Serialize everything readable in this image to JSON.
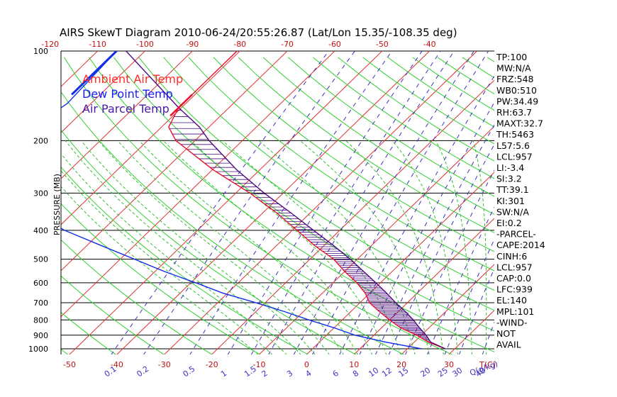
{
  "chart_data": {
    "type": "skewt",
    "title": "AIRS SkewT Diagram 2010-06-24/20:55:26.87 (Lat/Lon 15.35/-108.35 deg)",
    "ylabel": "PRESSURE (MB)",
    "pressure_ticks": [
      "100",
      "200",
      "300",
      "400",
      "500",
      "600",
      "700",
      "800",
      "900",
      "1000"
    ],
    "pressure_values": [
      100,
      200,
      300,
      400,
      500,
      600,
      700,
      800,
      900,
      1000
    ],
    "temp_ticks_bottom": [
      "-50",
      "-40",
      "-30",
      "-20",
      "-10",
      "0",
      "10",
      "20",
      "30"
    ],
    "temp_values_bottom": [
      -50,
      -40,
      -30,
      -20,
      -10,
      0,
      10,
      20,
      30
    ],
    "temp_unit_label": "T(C)",
    "temp_ticks_top": [
      "-120",
      "-110",
      "-100",
      "-90",
      "-80",
      "-70",
      "-60",
      "-50",
      "-40"
    ],
    "temp_values_top": [
      -120,
      -110,
      -100,
      -90,
      -80,
      -70,
      -60,
      -50,
      -40
    ],
    "mixing_ratio_ticks": [
      "0.1",
      "0.2",
      "0.5",
      "1",
      "1.5",
      "2",
      "3",
      "4",
      "6",
      "8",
      "10",
      "12",
      "15",
      "20",
      "25",
      "30",
      "40"
    ],
    "mixing_ratio_values": [
      0.1,
      0.2,
      0.5,
      1,
      1.5,
      2,
      3,
      4,
      6,
      8,
      10,
      12,
      15,
      20,
      25,
      30,
      40
    ],
    "mixing_ratio_unit_label": "Q(g/kg)",
    "legend": [
      {
        "label": "Ambient Air Temp",
        "color": "#ff2a2a"
      },
      {
        "label": "Dew Point Temp",
        "color": "#1a1aff"
      },
      {
        "label": "Air Parcel Temp",
        "color": "#4a1aa8"
      }
    ],
    "colors": {
      "ambient": "#e8102a",
      "dewpoint": "#1030e8",
      "parcel": "#4c0a80",
      "isotherm": "#e03030",
      "dry_adiabat": "#30d030",
      "mixing_ratio": "#4030c0",
      "moist_adiabat": "#30c030",
      "isobar": "#000000"
    },
    "series": [
      {
        "name": "Ambient Air Temp",
        "points": [
          [
            100,
            -80.6
          ],
          [
            155,
            -80.6
          ],
          [
            180,
            -78.5
          ],
          [
            200,
            -74
          ],
          [
            250,
            -60
          ],
          [
            300,
            -47
          ],
          [
            350,
            -37
          ],
          [
            400,
            -29
          ],
          [
            450,
            -22
          ],
          [
            500,
            -15
          ],
          [
            550,
            -10
          ],
          [
            600,
            -5
          ],
          [
            650,
            -1
          ],
          [
            700,
            2
          ],
          [
            750,
            6
          ],
          [
            800,
            10
          ],
          [
            850,
            14
          ],
          [
            900,
            19
          ],
          [
            950,
            23
          ],
          [
            1000,
            28
          ]
        ]
      },
      {
        "name": "Dew Point Temp",
        "points": [
          [
            100,
            -106
          ],
          [
            150,
            -105
          ],
          [
            170,
            -106.5
          ],
          [
            200,
            -107
          ],
          [
            260,
            -106
          ],
          [
            300,
            -99
          ],
          [
            350,
            -88
          ],
          [
            400,
            -78
          ],
          [
            450,
            -67
          ],
          [
            500,
            -57
          ],
          [
            550,
            -48
          ],
          [
            600,
            -39
          ],
          [
            650,
            -31
          ],
          [
            700,
            -22
          ],
          [
            750,
            -14
          ],
          [
            800,
            -7
          ],
          [
            850,
            0
          ],
          [
            900,
            6
          ],
          [
            950,
            14
          ],
          [
            1000,
            23
          ]
        ]
      },
      {
        "name": "Air Parcel Temp",
        "points": [
          [
            100,
            -104
          ],
          [
            155,
            -80.6
          ],
          [
            180,
            -72
          ],
          [
            200,
            -67
          ],
          [
            250,
            -55
          ],
          [
            300,
            -44
          ],
          [
            350,
            -34
          ],
          [
            400,
            -25.5
          ],
          [
            450,
            -18
          ],
          [
            500,
            -11.5
          ],
          [
            550,
            -6
          ],
          [
            600,
            -1
          ],
          [
            650,
            3.5
          ],
          [
            700,
            7.5
          ],
          [
            750,
            11.5
          ],
          [
            800,
            15
          ],
          [
            850,
            18
          ],
          [
            900,
            21
          ],
          [
            950,
            23.5
          ],
          [
            1000,
            28
          ]
        ]
      }
    ],
    "indices": [
      "TP:100",
      "MW:N/A",
      "FRZ:548",
      "WB0:510",
      "PW:34.49",
      "RH:63.7",
      "MAXT:32.7",
      "TH:5463",
      "L57:5.6",
      "LCL:957",
      "LI:-3.4",
      "SI:3.2",
      "TT:39.1",
      "KI:301",
      "SW:N/A",
      "EI:0.2",
      "-PARCEL-",
      "CAPE:2014",
      "CINH:6",
      "LCL:957",
      "CAP:0.0",
      "LFC:939",
      "EL:140",
      "MPL:101",
      "-WIND-",
      "NOT",
      "AVAIL"
    ]
  }
}
